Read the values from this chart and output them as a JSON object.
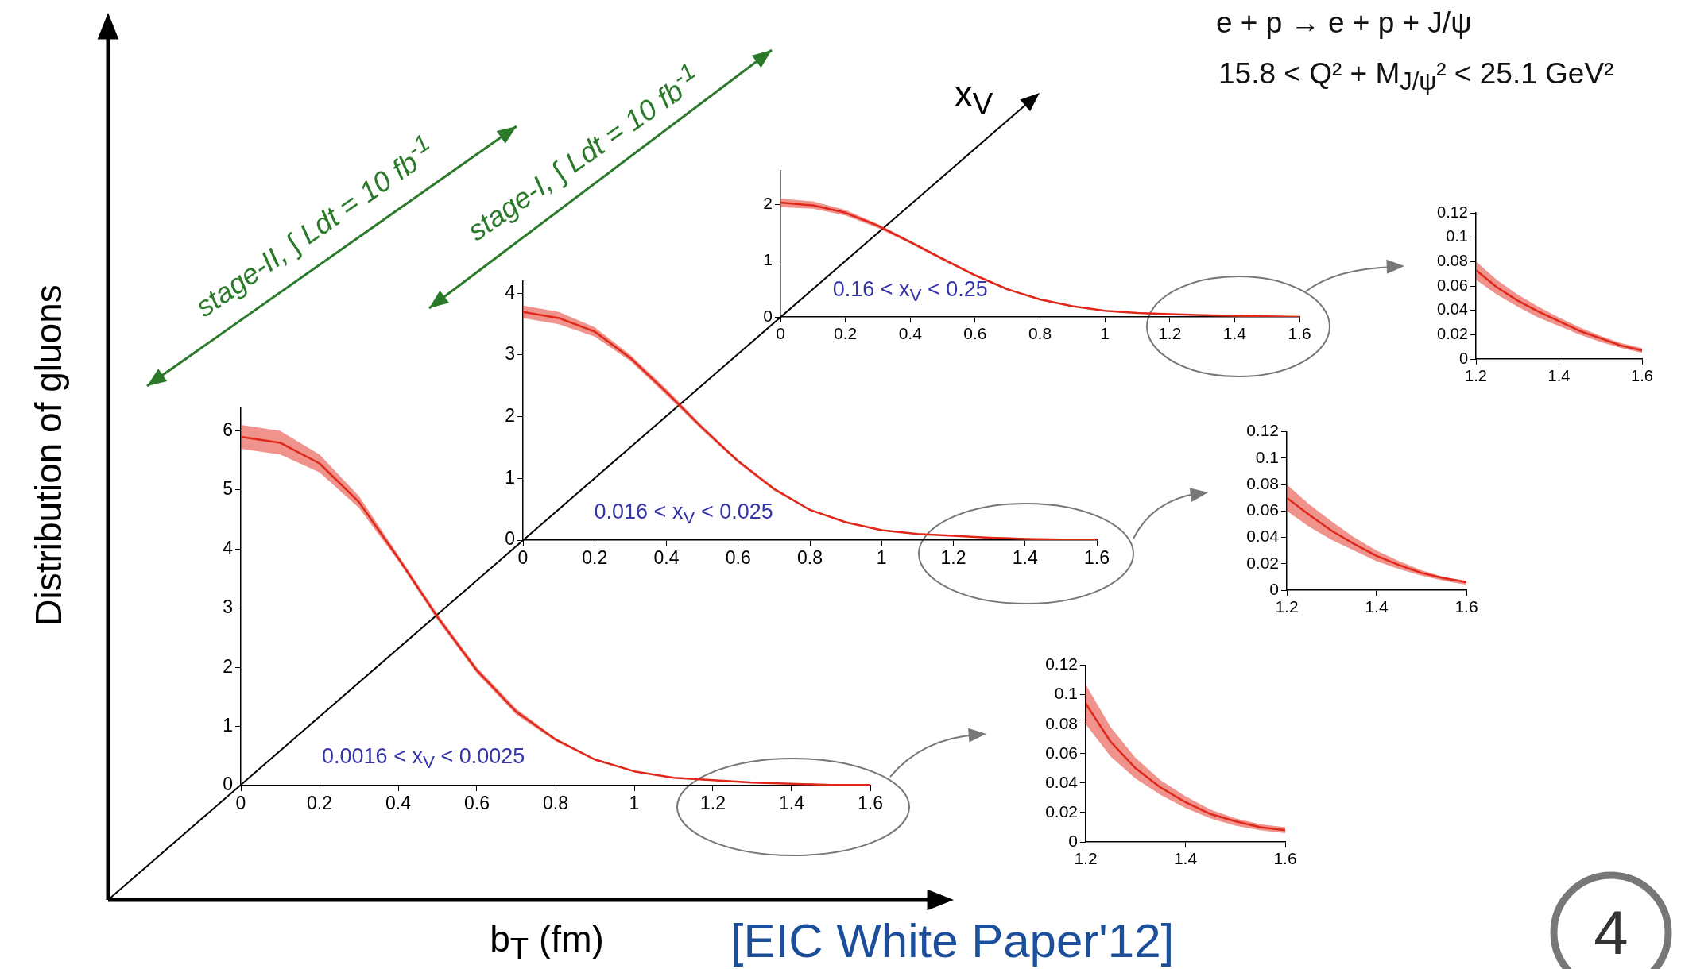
{
  "chart_data": [
    {
      "type": "line",
      "xlabel": "b$_{T}$ (fm)",
      "ylabel": "Distribution of gluons",
      "annotations": [
        "0.0016 < x$_{V}$ < 0.0025",
        "x$_{V}$",
        "stage-II, ∫ Ldt = 10 fb$^{-1}$",
        "stage-I, ∫ Ldt = 10 fb$^{-1}$",
        "[EIC White Paper'12]",
        "4"
      ],
      "xlim": [
        0,
        1.6
      ],
      "xticks": [
        0,
        0.2,
        0.4,
        0.6,
        0.8,
        1,
        1.2,
        1.4,
        1.6
      ],
      "ylim": [
        0,
        6.4
      ],
      "yticks": [
        0,
        1,
        2,
        3,
        4,
        5,
        6
      ],
      "grid": false,
      "legend": false,
      "marker": "none",
      "x": [
        0,
        0.1,
        0.2,
        0.3,
        0.4,
        0.5,
        0.6,
        0.7,
        0.8,
        0.9,
        1.0,
        1.1,
        1.2,
        1.3,
        1.4,
        1.5,
        1.6
      ],
      "series": [
        {
          "color": "#e0281a",
          "values": [
            5.9,
            5.8,
            5.45,
            4.8,
            3.85,
            2.85,
            1.95,
            1.25,
            0.78,
            0.44,
            0.24,
            0.13,
            0.09,
            0.05,
            0.03,
            0.01,
            0.01
          ],
          "lower": [
            5.7,
            5.6,
            5.3,
            4.7,
            3.8,
            2.8,
            1.9,
            1.2,
            0.75,
            0.42,
            0.23,
            0.12,
            0.08,
            0.04,
            0.02,
            0.01,
            0.0
          ],
          "upper": [
            6.1,
            6.0,
            5.6,
            4.9,
            3.9,
            2.9,
            2.0,
            1.3,
            0.8,
            0.45,
            0.25,
            0.13,
            0.1,
            0.06,
            0.03,
            0.02,
            0.01
          ]
        }
      ]
    },
    {
      "type": "line",
      "annotations": [
        "0.016 < x$_{V}$ < 0.025"
      ],
      "xlim": [
        0,
        1.6
      ],
      "xticks": [
        0,
        0.2,
        0.4,
        0.6,
        0.8,
        1,
        1.2,
        1.4,
        1.6
      ],
      "ylim": [
        0,
        4.2
      ],
      "yticks": [
        0,
        1,
        2,
        3,
        4
      ],
      "grid": false,
      "legend": false,
      "marker": "none",
      "x": [
        0,
        0.1,
        0.2,
        0.3,
        0.4,
        0.5,
        0.6,
        0.7,
        0.8,
        0.9,
        1.0,
        1.1,
        1.2,
        1.3,
        1.4,
        1.5,
        1.6
      ],
      "series": [
        {
          "color": "#e0281a",
          "values": [
            3.7,
            3.6,
            3.38,
            2.95,
            2.4,
            1.82,
            1.28,
            0.83,
            0.49,
            0.29,
            0.16,
            0.1,
            0.07,
            0.04,
            0.02,
            0.01,
            0.01
          ],
          "lower": [
            3.6,
            3.5,
            3.3,
            2.9,
            2.35,
            1.78,
            1.25,
            0.8,
            0.48,
            0.28,
            0.15,
            0.09,
            0.06,
            0.04,
            0.02,
            0.01,
            0.0
          ],
          "upper": [
            3.8,
            3.7,
            3.45,
            3.0,
            2.45,
            1.85,
            1.3,
            0.85,
            0.5,
            0.3,
            0.16,
            0.1,
            0.08,
            0.05,
            0.03,
            0.02,
            0.01
          ]
        }
      ]
    },
    {
      "type": "line",
      "title": "e + p → e + p + J/ψ",
      "subtitle": "15.8 < Q² + M$_{J/ψ}$² < 25.1 GeV²",
      "annotations": [
        "0.16 < x$_{V}$ < 0.25"
      ],
      "xlim": [
        0,
        1.6
      ],
      "xticks": [
        0,
        0.2,
        0.4,
        0.6,
        0.8,
        1,
        1.2,
        1.4,
        1.6
      ],
      "ylim": [
        0,
        2.6
      ],
      "yticks": [
        0,
        1,
        2
      ],
      "grid": false,
      "legend": false,
      "marker": "none",
      "x": [
        0,
        0.1,
        0.2,
        0.3,
        0.4,
        0.5,
        0.6,
        0.7,
        0.8,
        0.9,
        1.0,
        1.1,
        1.2,
        1.3,
        1.4,
        1.5,
        1.6
      ],
      "series": [
        {
          "color": "#e0281a",
          "values": [
            2.03,
            1.98,
            1.85,
            1.62,
            1.33,
            1.03,
            0.74,
            0.49,
            0.31,
            0.19,
            0.11,
            0.07,
            0.05,
            0.03,
            0.02,
            0.01,
            0.0
          ],
          "lower": [
            1.95,
            1.92,
            1.8,
            1.58,
            1.3,
            1.0,
            0.72,
            0.48,
            0.3,
            0.18,
            0.1,
            0.06,
            0.04,
            0.03,
            0.01,
            0.01,
            0.0
          ],
          "upper": [
            2.1,
            2.05,
            1.9,
            1.65,
            1.35,
            1.05,
            0.75,
            0.5,
            0.32,
            0.19,
            0.11,
            0.07,
            0.05,
            0.03,
            0.02,
            0.01,
            0.01
          ]
        }
      ]
    },
    {
      "type": "line",
      "xlim": [
        1.2,
        1.6
      ],
      "xticks": [
        1.2,
        1.4,
        1.6
      ],
      "ylim": [
        0,
        0.12
      ],
      "yticks": [
        0,
        0.02,
        0.04,
        0.06,
        0.08,
        0.1,
        0.12
      ],
      "grid": false,
      "legend": false,
      "marker": "none",
      "x": [
        1.2,
        1.25,
        1.3,
        1.35,
        1.4,
        1.45,
        1.5,
        1.55,
        1.6
      ],
      "series": [
        {
          "color": "#e0281a",
          "values": [
            0.094,
            0.068,
            0.05,
            0.037,
            0.027,
            0.019,
            0.014,
            0.01,
            0.008
          ],
          "lower": [
            0.08,
            0.058,
            0.043,
            0.032,
            0.023,
            0.016,
            0.011,
            0.008,
            0.006
          ],
          "upper": [
            0.107,
            0.078,
            0.057,
            0.042,
            0.031,
            0.022,
            0.016,
            0.012,
            0.01
          ]
        }
      ]
    },
    {
      "type": "line",
      "xlim": [
        1.2,
        1.6
      ],
      "xticks": [
        1.2,
        1.4,
        1.6
      ],
      "ylim": [
        0,
        0.12
      ],
      "yticks": [
        0,
        0.02,
        0.04,
        0.06,
        0.08,
        0.1,
        0.12
      ],
      "grid": false,
      "legend": false,
      "marker": "none",
      "x": [
        1.2,
        1.25,
        1.3,
        1.35,
        1.4,
        1.45,
        1.5,
        1.55,
        1.6
      ],
      "series": [
        {
          "color": "#e0281a",
          "values": [
            0.07,
            0.057,
            0.045,
            0.035,
            0.026,
            0.019,
            0.013,
            0.009,
            0.006
          ],
          "lower": [
            0.06,
            0.048,
            0.038,
            0.03,
            0.022,
            0.016,
            0.011,
            0.007,
            0.004
          ],
          "upper": [
            0.08,
            0.065,
            0.052,
            0.04,
            0.03,
            0.022,
            0.015,
            0.01,
            0.007
          ]
        }
      ]
    },
    {
      "type": "line",
      "xlim": [
        1.2,
        1.6
      ],
      "xticks": [
        1.2,
        1.4,
        1.6
      ],
      "ylim": [
        0,
        0.12
      ],
      "yticks": [
        0,
        0.02,
        0.04,
        0.06,
        0.08,
        0.1,
        0.12
      ],
      "grid": false,
      "legend": false,
      "marker": "none",
      "x": [
        1.2,
        1.25,
        1.3,
        1.35,
        1.4,
        1.45,
        1.5,
        1.55,
        1.6
      ],
      "series": [
        {
          "color": "#e0281a",
          "values": [
            0.073,
            0.059,
            0.048,
            0.039,
            0.031,
            0.023,
            0.017,
            0.011,
            0.007
          ],
          "lower": [
            0.065,
            0.053,
            0.043,
            0.034,
            0.027,
            0.02,
            0.014,
            0.009,
            0.005
          ],
          "upper": [
            0.08,
            0.065,
            0.053,
            0.043,
            0.034,
            0.026,
            0.019,
            0.013,
            0.009
          ]
        }
      ]
    }
  ]
}
